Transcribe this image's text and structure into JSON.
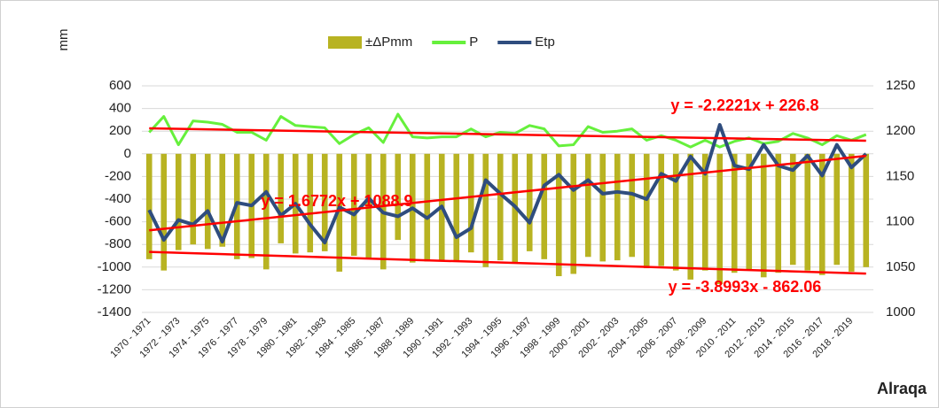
{
  "chart_data": {
    "type": "combo",
    "axis_label": "mm",
    "annotation": "Alraqa",
    "categories": [
      "1970 - 1971",
      null,
      "1972 - 1973",
      null,
      "1974 - 1975",
      null,
      "1976 - 1977",
      null,
      "1978 - 1979",
      null,
      "1980 - 1981",
      null,
      "1982 - 1983",
      null,
      "1984 - 1985",
      null,
      "1986 - 1987",
      null,
      "1988 - 1989",
      null,
      "1990 - 1991",
      null,
      "1992 - 1993",
      null,
      "1994 - 1995",
      null,
      "1996 - 1997",
      null,
      "1998 - 1999",
      null,
      "2000 - 2001",
      null,
      "2002 - 2003",
      null,
      "2004 - 2005",
      null,
      "2006 - 2007",
      null,
      "2008 - 2009",
      null,
      "2010 - 2011",
      null,
      "2012 - 2013",
      null,
      "2014 - 2015",
      null,
      "2016 - 2017",
      null,
      "2018 - 2019",
      null
    ],
    "series": [
      {
        "name": "±ΔPmm",
        "kind": "bar",
        "color": "#b8b322",
        "axis": "y",
        "values": [
          -930,
          -1030,
          -850,
          -800,
          -840,
          -820,
          -930,
          -920,
          -1020,
          -790,
          -880,
          -870,
          -860,
          -1040,
          -900,
          -930,
          -1020,
          -760,
          -960,
          -950,
          -950,
          -950,
          -870,
          -1000,
          -940,
          -960,
          -860,
          -930,
          -1080,
          -1060,
          -910,
          -950,
          -940,
          -910,
          -1010,
          -990,
          -1030,
          -1110,
          -1030,
          -1150,
          -1050,
          -1020,
          -1090,
          -1050,
          -980,
          -1030,
          -1070,
          -980,
          -1040,
          -1000
        ]
      },
      {
        "name": "P",
        "kind": "line",
        "color": "#66f03c",
        "axis": "y",
        "values": [
          190,
          330,
          80,
          290,
          280,
          260,
          190,
          190,
          120,
          330,
          250,
          240,
          230,
          90,
          170,
          230,
          100,
          350,
          150,
          140,
          150,
          150,
          220,
          150,
          190,
          180,
          250,
          220,
          70,
          80,
          240,
          190,
          200,
          220,
          120,
          160,
          120,
          60,
          120,
          60,
          110,
          140,
          90,
          110,
          180,
          140,
          80,
          160,
          120,
          170
        ]
      },
      {
        "name": "Etp",
        "kind": "line",
        "color": "#2f4d7e",
        "axis": "y2",
        "values": [
          1113,
          1080,
          1102,
          1097,
          1112,
          1078,
          1121,
          1118,
          1133,
          1107,
          1120,
          1097,
          1077,
          1116,
          1108,
          1126,
          1110,
          1106,
          1115,
          1104,
          1117,
          1083,
          1093,
          1146,
          1131,
          1117,
          1099,
          1140,
          1152,
          1135,
          1146,
          1131,
          1133,
          1131,
          1125,
          1153,
          1145,
          1172,
          1153,
          1207,
          1162,
          1158,
          1185,
          1162,
          1157,
          1173,
          1151,
          1185,
          1160,
          1175
        ]
      }
    ],
    "trendlines": [
      {
        "label": "y = -2.2221x + 226.8",
        "slope": -2.2221,
        "intercept": 226.8,
        "axis": "y",
        "color": "#ff0000"
      },
      {
        "label": "y = 1.6772x + 1088.9",
        "slope": 1.6772,
        "intercept": 1088.9,
        "axis": "y2",
        "color": "#ff0000"
      },
      {
        "label": "y = -3.8993x - 862.06",
        "slope": -3.8993,
        "intercept": -862.06,
        "axis": "y",
        "color": "#ff0000"
      }
    ],
    "ylim": [
      -1400,
      600
    ],
    "yticks": [
      -1400,
      -1200,
      -1000,
      -800,
      -600,
      -400,
      -200,
      0,
      200,
      400,
      600
    ],
    "y2lim": [
      1000,
      1250
    ],
    "y2ticks": [
      1000,
      1050,
      1100,
      1150,
      1200,
      1250
    ],
    "grid": true
  }
}
